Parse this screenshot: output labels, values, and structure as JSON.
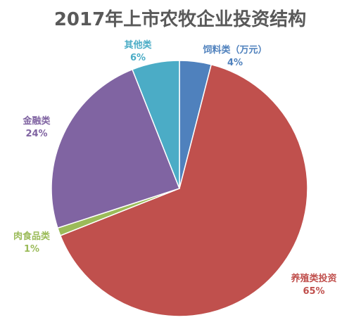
{
  "chart_data": {
    "type": "pie",
    "title": "2017年上市农牧企业投资结构",
    "slices": [
      {
        "label": "饲料类（万元）",
        "value": 4,
        "pct_label": "4%",
        "color": "#4f81bd"
      },
      {
        "label": "养殖类投资",
        "value": 65,
        "pct_label": "65%",
        "color": "#c0504d"
      },
      {
        "label": "肉食品类",
        "value": 1,
        "pct_label": "1%",
        "color": "#9bbb59"
      },
      {
        "label": "金融类",
        "value": 24,
        "pct_label": "24%",
        "color": "#8064a2"
      },
      {
        "label": "其他类",
        "value": 6,
        "pct_label": "6%",
        "color": "#4bacc6"
      }
    ],
    "start": "top",
    "direction": "clockwise",
    "slice_border_color": "#ffffff",
    "title_color": "#595959"
  }
}
